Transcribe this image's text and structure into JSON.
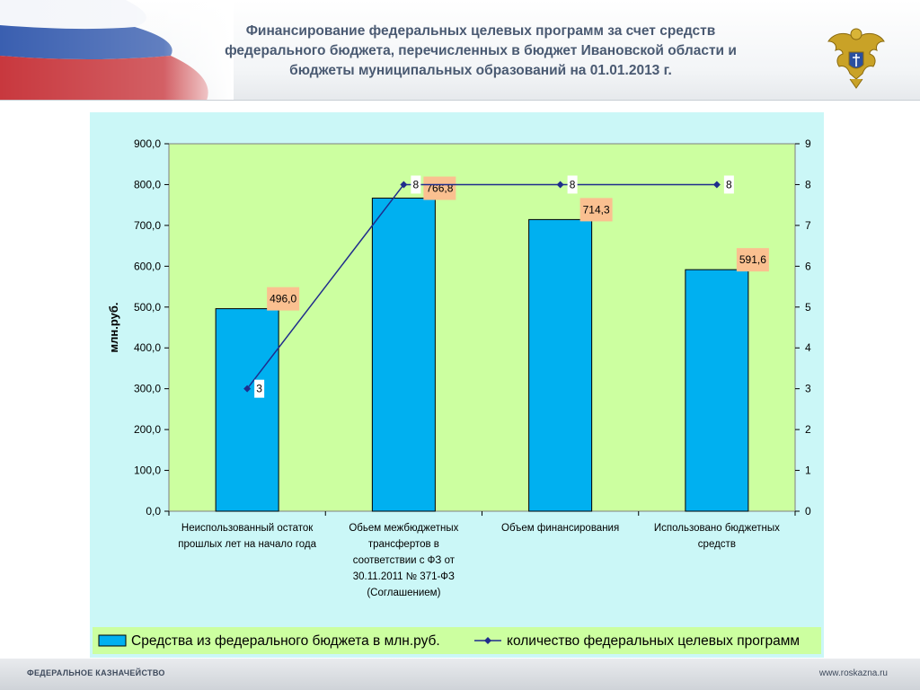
{
  "header": {
    "title_lines": [
      "Финансирование федеральных целевых программ за счет средств",
      "федерального бюджета, перечисленных в бюджет Ивановской области и",
      "бюджеты муниципальных образований на 01.01.2013 г."
    ]
  },
  "footer": {
    "left": "ФЕДЕРАЛЬНОЕ КАЗНАЧЕЙСТВО",
    "right": "www.roskazna.ru"
  },
  "colors": {
    "bar": "#00b0f0",
    "line": "#1f2c8c",
    "plot_bg": "#ccffa0",
    "panel_bg": "#cbf7f7",
    "label_bg": "#fac090",
    "title": "#4a5a72"
  },
  "chart_data": {
    "type": "bar",
    "categories": [
      [
        "Неиспользованный остаток",
        "прошлых лет на начало года"
      ],
      [
        "Обьем межбюджетных",
        "трансфертов в",
        "соответствии с ФЗ от",
        "30.11.2011 № 371-ФЗ",
        "(Соглашением)"
      ],
      [
        "Объем финансирования"
      ],
      [
        "Использовано бюджетных",
        "средств"
      ]
    ],
    "series": [
      {
        "name": "Средства из федерального бюджета в млн.руб.",
        "type": "bar",
        "axis": "left",
        "values": [
          496.0,
          766.8,
          714.3,
          591.6
        ],
        "labels": [
          "496,0",
          "766,8",
          "714,3",
          "591,6"
        ]
      },
      {
        "name": "количество федеральных целевых программ",
        "type": "line",
        "axis": "right",
        "values": [
          3,
          8,
          8,
          8
        ],
        "labels": [
          "3",
          "8",
          "8",
          "8"
        ]
      }
    ],
    "ylabel": "млн.руб.",
    "ylim": [
      0,
      900
    ],
    "y_ticks": [
      "0,0",
      "100,0",
      "200,0",
      "300,0",
      "400,0",
      "500,0",
      "600,0",
      "700,0",
      "800,0",
      "900,0"
    ],
    "y2lim": [
      0,
      9
    ],
    "y2_ticks": [
      "0",
      "1",
      "2",
      "3",
      "4",
      "5",
      "6",
      "7",
      "8",
      "9"
    ],
    "grid": false,
    "legend_position": "bottom"
  }
}
